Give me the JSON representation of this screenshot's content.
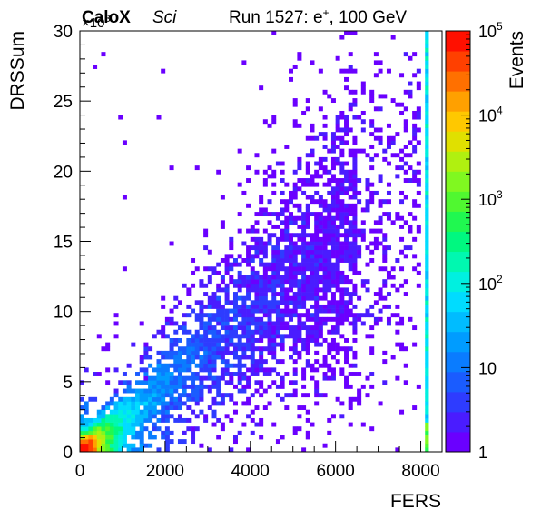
{
  "header": {
    "experiment": "CaloX",
    "experiment_tag": "Sci",
    "run_label": "Run 1527: e",
    "run_particle_sup": "+",
    "run_energy": ", 100 GeV"
  },
  "chart_data": {
    "type": "heatmap",
    "xlabel": "FERS",
    "ylabel": "DRSSum",
    "y_multiplier_label": "×10",
    "y_multiplier_exp": "3",
    "xlim": [
      0,
      8500
    ],
    "ylim": [
      0,
      30
    ],
    "x_ticks": [
      0,
      2000,
      4000,
      6000,
      8000
    ],
    "x_tick_labels": [
      "0",
      "2000",
      "4000",
      "6000",
      "8000"
    ],
    "y_ticks": [
      0,
      5,
      10,
      15,
      20,
      25,
      30
    ],
    "y_tick_labels": [
      "0",
      "5",
      "10",
      "15",
      "20",
      "25",
      "30"
    ],
    "z_label": "Events",
    "z_scale": "log",
    "z_range": [
      1,
      100000
    ],
    "z_tick_labels": [
      {
        "base": "1",
        "exp": ""
      },
      {
        "base": "10",
        "exp": ""
      },
      {
        "base": "10",
        "exp": "2"
      },
      {
        "base": "10",
        "exp": "3"
      },
      {
        "base": "10",
        "exp": "4"
      },
      {
        "base": "10",
        "exp": "5"
      }
    ],
    "palette": [
      "#6a00ff",
      "#4a1cff",
      "#2e3cff",
      "#1a5cff",
      "#0a7cff",
      "#009cff",
      "#00bcff",
      "#00dcff",
      "#00f0e0",
      "#00f8b0",
      "#00f880",
      "#20f850",
      "#50f830",
      "#80f820",
      "#b0f010",
      "#e0e000",
      "#ffc800",
      "#ffa000",
      "#ff7000",
      "#ff4000",
      "#ff1000"
    ],
    "grid": false,
    "density_bands": [
      {
        "x_from": 0,
        "x_to": 500,
        "y_from": 0,
        "y_to": 1.5,
        "level": "10^3"
      },
      {
        "x_from": 0,
        "x_to": 1500,
        "y_from": 0,
        "y_to": 4,
        "level": "10^2"
      },
      {
        "x_from": 500,
        "x_to": 3000,
        "y_from": 1,
        "y_to": 10,
        "level": "10"
      },
      {
        "x_from": 2000,
        "x_to": 8000,
        "y_from": 3,
        "y_to": 20,
        "level": "1"
      }
    ],
    "overflow_column": {
      "x": 8100,
      "y_from": 0,
      "y_to": 30,
      "level": "10^2"
    }
  }
}
